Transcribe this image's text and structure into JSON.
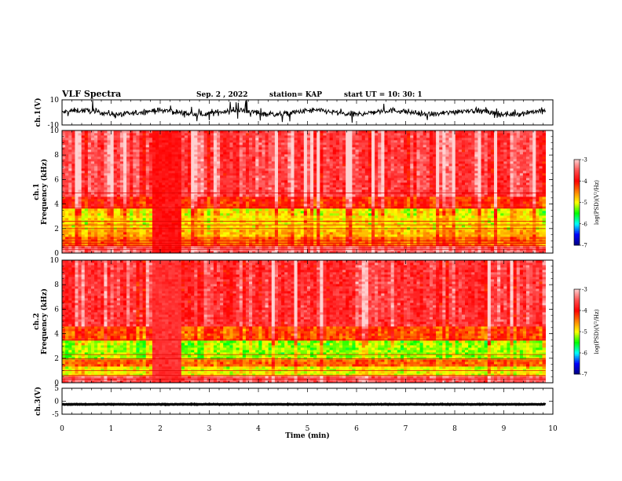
{
  "header": {
    "title": "VLF Spectra",
    "date": "Sep. 2 , 2022",
    "station": "station= KAP",
    "start": "start UT = 10: 30: 1"
  },
  "chart_data": [
    {
      "type": "line",
      "name": "ch1-waveform",
      "ylabel": "ch.1(V)",
      "xlim": [
        0,
        10
      ],
      "ylim": [
        -10,
        10
      ],
      "yticks": [
        "10",
        "-10"
      ],
      "trace_x_end": 9.85,
      "trace_level": 0,
      "trace_noise": 4.5
    },
    {
      "type": "heatmap",
      "name": "ch1-spectrogram",
      "ylabel": [
        "ch.1",
        "Frequency (kHz)"
      ],
      "xlim": [
        0,
        10
      ],
      "ylim": [
        0,
        10
      ],
      "yticks": [
        "0",
        "2",
        "4",
        "6",
        "8",
        "10"
      ],
      "data_x_end": 9.85,
      "colorbar": {
        "label": "log(PSD)(V²/Hz)",
        "range": [
          -7,
          -3
        ],
        "ticks": [
          "-3",
          "-4",
          "-5",
          "-6",
          "-7"
        ]
      },
      "bands": [
        {
          "f": [
            0,
            0.6
          ],
          "level": -3.4
        },
        {
          "f": [
            0.6,
            1.4
          ],
          "level": -4.4
        },
        {
          "f": [
            1.4,
            2.0
          ],
          "level": -4.7
        },
        {
          "f": [
            2.0,
            3.6
          ],
          "level": -4.9
        },
        {
          "f": [
            3.6,
            4.6
          ],
          "level": -4.1
        },
        {
          "f": [
            4.6,
            10
          ],
          "level": -3.6
        }
      ],
      "lines_khz": [
        0.3,
        0.45,
        0.6,
        0.8,
        1.0,
        2.0,
        2.3,
        2.6,
        3.7,
        4.9
      ],
      "event": {
        "t": [
          1.85,
          2.45
        ],
        "level": -3.9
      }
    },
    {
      "type": "heatmap",
      "name": "ch2-spectrogram",
      "ylabel": [
        "ch.2",
        "Frequency (kHz)"
      ],
      "xlim": [
        0,
        10
      ],
      "ylim": [
        0,
        10
      ],
      "yticks": [
        "0",
        "2",
        "4",
        "6",
        "8",
        "10"
      ],
      "data_x_end": 9.85,
      "colorbar": {
        "label": "log(PSD)(V²/Hz)",
        "range": [
          -7,
          -3
        ],
        "ticks": [
          "-3",
          "-4",
          "-5",
          "-6",
          "-7"
        ]
      },
      "bands": [
        {
          "f": [
            0,
            0.5
          ],
          "level": -3.5
        },
        {
          "f": [
            0.5,
            1.4
          ],
          "level": -5.0
        },
        {
          "f": [
            1.4,
            2.0
          ],
          "level": -4.4
        },
        {
          "f": [
            2.0,
            3.4
          ],
          "level": -5.2
        },
        {
          "f": [
            3.4,
            4.6
          ],
          "level": -4.3
        },
        {
          "f": [
            4.6,
            10
          ],
          "level": -3.7
        }
      ],
      "lines_khz": [
        0.3,
        0.6,
        1.0,
        1.95,
        2.3,
        3.5
      ],
      "event": {
        "t": [
          1.85,
          2.45
        ],
        "level": -3.7
      }
    },
    {
      "type": "line",
      "name": "ch3-waveform",
      "ylabel": "ch.3(V)",
      "xlim": [
        0,
        10
      ],
      "ylim": [
        -5,
        5
      ],
      "yticks": [
        "5",
        "0",
        "-5"
      ],
      "trace_x_end": 9.85,
      "trace_level": -1.2,
      "trace_noise": 0.35
    }
  ],
  "xaxis": {
    "label": "Time (min)",
    "ticks": [
      "0",
      "1",
      "2",
      "3",
      "4",
      "5",
      "6",
      "7",
      "8",
      "9",
      "10"
    ]
  },
  "colors": {
    "colormap": [
      "#000080",
      "#0000ff",
      "#00ffff",
      "#00ff00",
      "#ffff00",
      "#ff8000",
      "#ff0000",
      "#ff5050",
      "#ffd0d0"
    ],
    "spectral_line": "#e00000",
    "trace": "#000000"
  }
}
